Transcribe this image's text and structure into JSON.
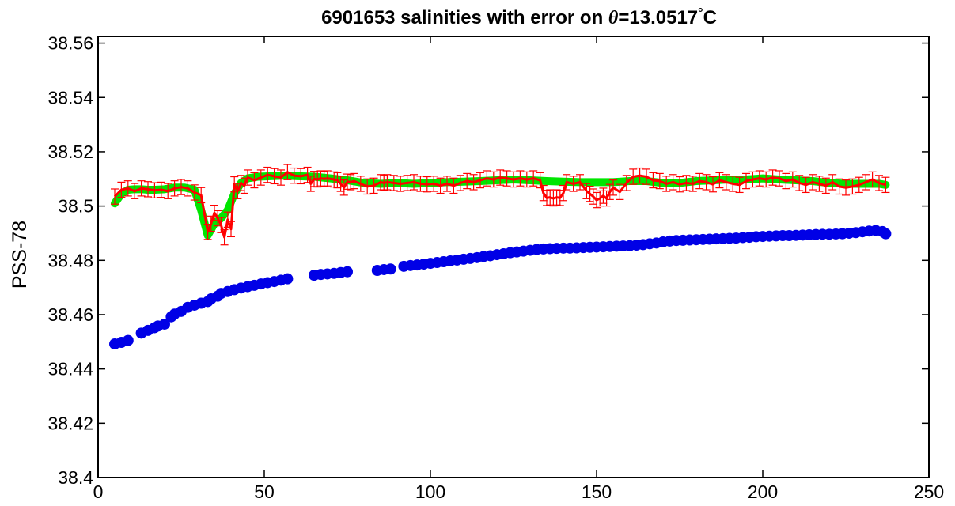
{
  "chart_data": {
    "type": "scatter",
    "title": "6901653 salinities with error on θ=13.0517°C",
    "title_parts": {
      "prefix": "6901653 salinities with error on ",
      "theta": "θ",
      "value": "=13.0517",
      "degree": "°",
      "unit": "C"
    },
    "xlabel": "",
    "ylabel": "PSS-78",
    "xlim": [
      0,
      250
    ],
    "ylim": [
      38.4,
      38.5625
    ],
    "xticks": [
      "0",
      "50",
      "100",
      "150",
      "200",
      "250"
    ],
    "yticks": [
      "38.4",
      "38.42",
      "38.44",
      "38.46",
      "38.48",
      "38.5",
      "38.52",
      "38.54",
      "38.56"
    ],
    "grid": false,
    "legend": "none",
    "colors": {
      "blue": "#0000e6",
      "green": "#00e600",
      "red": "#ff0000"
    },
    "series": [
      {
        "style": "filled circles",
        "color": "#0000e6",
        "x": [
          5,
          7,
          9,
          13,
          15,
          17,
          18,
          20,
          22,
          23,
          25,
          27,
          29,
          31,
          33,
          34,
          36,
          37,
          39,
          41,
          43,
          45,
          47,
          49,
          51,
          53,
          55,
          57,
          65,
          67,
          69,
          71,
          73,
          75,
          84,
          86,
          88,
          92,
          94,
          96,
          98,
          100,
          102,
          104,
          106,
          108,
          110,
          112,
          114,
          116,
          118,
          120,
          122,
          124,
          126,
          128,
          130,
          132,
          134,
          136,
          138,
          140,
          142,
          144,
          146,
          148,
          150,
          152,
          154,
          156,
          158,
          160,
          162,
          164,
          166,
          168,
          170,
          172,
          174,
          176,
          178,
          180,
          182,
          184,
          186,
          188,
          190,
          192,
          194,
          196,
          198,
          200,
          202,
          204,
          206,
          208,
          210,
          212,
          214,
          216,
          218,
          220,
          222,
          224,
          226,
          228,
          230,
          232,
          234,
          236,
          237
        ],
        "y": [
          38.4492,
          38.4498,
          38.4505,
          38.4532,
          38.4542,
          38.4552,
          38.4558,
          38.4565,
          38.4592,
          38.4602,
          38.4612,
          38.4627,
          38.4635,
          38.4642,
          38.4648,
          38.4658,
          38.4668,
          38.4678,
          38.4685,
          38.4692,
          38.4698,
          38.4703,
          38.4708,
          38.4713,
          38.4718,
          38.4722,
          38.4727,
          38.4732,
          38.4745,
          38.4748,
          38.475,
          38.4752,
          38.4755,
          38.4758,
          38.4763,
          38.4766,
          38.4768,
          38.4778,
          38.4781,
          38.4783,
          38.4786,
          38.4789,
          38.4792,
          38.4795,
          38.4798,
          38.4801,
          38.4804,
          38.4807,
          38.481,
          38.4814,
          38.4817,
          38.4821,
          38.4824,
          38.4828,
          38.4831,
          38.4834,
          38.4837,
          38.484,
          38.4842,
          38.4843,
          38.4844,
          38.4845,
          38.4845,
          38.4846,
          38.4847,
          38.4848,
          38.4849,
          38.485,
          38.4851,
          38.4852,
          38.4853,
          38.4854,
          38.4856,
          38.4858,
          38.4861,
          38.4864,
          38.4868,
          38.4871,
          38.4873,
          38.4874,
          38.4875,
          38.4876,
          38.4877,
          38.4878,
          38.4879,
          38.488,
          38.4881,
          38.4882,
          38.4884,
          38.4885,
          38.4887,
          38.4888,
          38.4889,
          38.489,
          38.4891,
          38.4891,
          38.4892,
          38.4893,
          38.4894,
          38.4895,
          38.4896,
          38.4896,
          38.4897,
          38.4898,
          38.49,
          38.4902,
          38.4905,
          38.4908,
          38.491,
          38.4906,
          38.4898
        ]
      },
      {
        "style": "thick line",
        "color": "#00e600",
        "x": [
          5,
          7,
          9,
          11,
          13,
          15,
          17,
          20,
          23,
          26,
          29,
          31,
          33,
          35,
          37,
          39,
          41,
          43,
          45,
          48,
          52,
          56,
          60,
          65,
          70,
          75,
          80,
          85,
          90,
          95,
          100,
          105,
          110,
          115,
          120,
          125,
          130,
          135,
          140,
          145,
          150,
          155,
          160,
          165,
          170,
          175,
          180,
          185,
          190,
          195,
          200,
          205,
          210,
          215,
          220,
          225,
          230,
          235,
          237
        ],
        "y": [
          38.501,
          38.5045,
          38.506,
          38.5062,
          38.5062,
          38.506,
          38.506,
          38.5062,
          38.5068,
          38.5068,
          38.506,
          38.4985,
          38.4892,
          38.4935,
          38.4955,
          38.4985,
          38.5045,
          38.5085,
          38.5102,
          38.5108,
          38.511,
          38.5112,
          38.511,
          38.5108,
          38.5102,
          38.5095,
          38.5085,
          38.5082,
          38.5085,
          38.5082,
          38.5085,
          38.5088,
          38.509,
          38.5092,
          38.5095,
          38.5098,
          38.5095,
          38.5092,
          38.509,
          38.5088,
          38.5088,
          38.5088,
          38.5092,
          38.5092,
          38.5085,
          38.5085,
          38.5092,
          38.5095,
          38.5098,
          38.5098,
          38.5102,
          38.5098,
          38.5095,
          38.5092,
          38.5085,
          38.5082,
          38.5082,
          38.5082,
          38.5078
        ]
      },
      {
        "style": "line with error bars",
        "color": "#ff0000",
        "error": 0.0028,
        "x": [
          5,
          7,
          9,
          11,
          13,
          15,
          17,
          19,
          21,
          23,
          25,
          27,
          29,
          31,
          33,
          34,
          35,
          36,
          37,
          38,
          39,
          40,
          41,
          42,
          43,
          44,
          45,
          47,
          49,
          51,
          53,
          55,
          57,
          59,
          61,
          63,
          64,
          65,
          66,
          67,
          68,
          69,
          71,
          72,
          73,
          74,
          75,
          76,
          77,
          79,
          81,
          83,
          85,
          86,
          87,
          89,
          91,
          93,
          95,
          97,
          99,
          101,
          103,
          105,
          107,
          109,
          111,
          113,
          115,
          117,
          119,
          121,
          123,
          125,
          127,
          129,
          131,
          133,
          134,
          135,
          136,
          137,
          138,
          139,
          140,
          141,
          143,
          145,
          147,
          148,
          149,
          150,
          151,
          152,
          153,
          154,
          155,
          157,
          159,
          161,
          163,
          165,
          167,
          169,
          171,
          173,
          175,
          177,
          179,
          181,
          183,
          185,
          187,
          189,
          191,
          193,
          195,
          197,
          199,
          201,
          203,
          205,
          207,
          209,
          211,
          213,
          215,
          217,
          219,
          221,
          223,
          225,
          227,
          229,
          231,
          233,
          235,
          237
        ],
        "y": [
          38.5035,
          38.506,
          38.5065,
          38.5055,
          38.5065,
          38.5062,
          38.5058,
          38.506,
          38.5055,
          38.5065,
          38.507,
          38.5065,
          38.505,
          38.504,
          38.4905,
          38.4935,
          38.4975,
          38.4955,
          38.493,
          38.4885,
          38.495,
          38.4915,
          38.508,
          38.5055,
          38.5085,
          38.5075,
          38.5105,
          38.5095,
          38.5105,
          38.5115,
          38.511,
          38.5105,
          38.5125,
          38.5112,
          38.511,
          38.5115,
          38.5082,
          38.51,
          38.5098,
          38.5102,
          38.51,
          38.5102,
          38.5098,
          38.5095,
          38.5082,
          38.5068,
          38.509,
          38.5088,
          38.5092,
          38.5082,
          38.5072,
          38.5075,
          38.5088,
          38.5085,
          38.5088,
          38.5085,
          38.5082,
          38.5085,
          38.5088,
          38.5082,
          38.508,
          38.5082,
          38.5075,
          38.5082,
          38.5075,
          38.5085,
          38.5092,
          38.5088,
          38.5095,
          38.5102,
          38.5098,
          38.5105,
          38.5102,
          38.5098,
          38.5102,
          38.5098,
          38.5102,
          38.5095,
          38.5048,
          38.503,
          38.5032,
          38.5028,
          38.5032,
          38.503,
          38.5048,
          38.5088,
          38.5082,
          38.5088,
          38.5055,
          38.5045,
          38.5035,
          38.5022,
          38.5028,
          38.5038,
          38.5028,
          38.5052,
          38.5068,
          38.5052,
          38.5085,
          38.5108,
          38.5112,
          38.5108,
          38.5095,
          38.5092,
          38.5082,
          38.5088,
          38.508,
          38.5085,
          38.5082,
          38.5092,
          38.5088,
          38.508,
          38.5095,
          38.5088,
          38.5082,
          38.5078,
          38.5092,
          38.5098,
          38.5102,
          38.5098,
          38.5105,
          38.5102,
          38.5092,
          38.5098,
          38.5085,
          38.5078,
          38.5088,
          38.5082,
          38.5075,
          38.5088,
          38.5072,
          38.5068,
          38.5072,
          38.5078,
          38.5088,
          38.5098,
          38.5085,
          38.5078
        ]
      }
    ]
  }
}
